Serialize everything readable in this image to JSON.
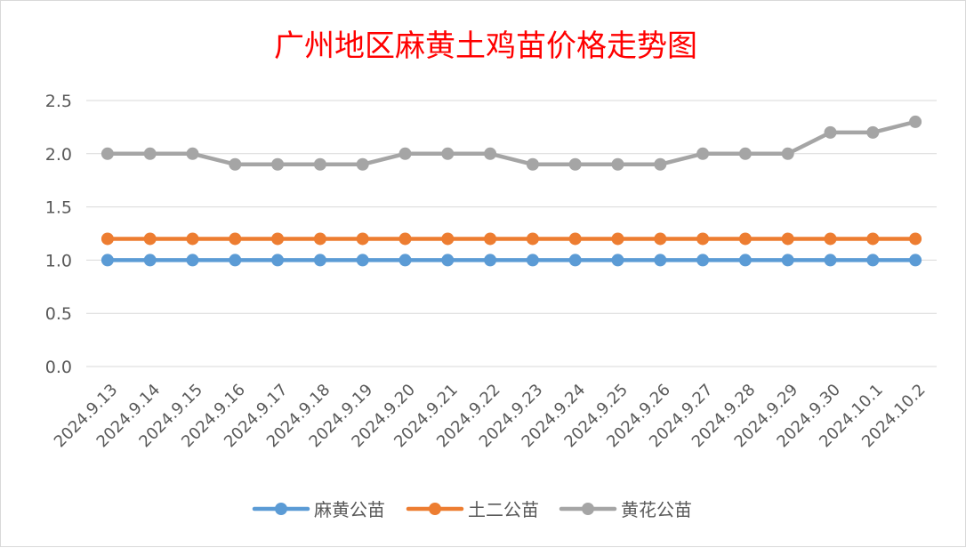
{
  "colors": {
    "series": [
      "#5b9bd5",
      "#ed7d31",
      "#a5a5a5"
    ],
    "title": "#ff0000",
    "grid": "#d9d9d9",
    "tick": "#595959"
  },
  "chart_data": {
    "type": "line",
    "title": "广州地区麻黄土鸡苗价格走势图",
    "xlabel": "",
    "ylabel": "",
    "categories": [
      "2024.9.13",
      "2024.9.14",
      "2024.9.15",
      "2024.9.16",
      "2024.9.17",
      "2024.9.18",
      "2024.9.19",
      "2024.9.20",
      "2024.9.21",
      "2024.9.22",
      "2024.9.23",
      "2024.9.24",
      "2024.9.25",
      "2024.9.26",
      "2024.9.27",
      "2024.9.28",
      "2024.9.29",
      "2024.9.30",
      "2024.10.1",
      "2024.10.2"
    ],
    "series": [
      {
        "name": "麻黄公苗",
        "values": [
          1.0,
          1.0,
          1.0,
          1.0,
          1.0,
          1.0,
          1.0,
          1.0,
          1.0,
          1.0,
          1.0,
          1.0,
          1.0,
          1.0,
          1.0,
          1.0,
          1.0,
          1.0,
          1.0,
          1.0
        ]
      },
      {
        "name": "土二公苗",
        "values": [
          1.2,
          1.2,
          1.2,
          1.2,
          1.2,
          1.2,
          1.2,
          1.2,
          1.2,
          1.2,
          1.2,
          1.2,
          1.2,
          1.2,
          1.2,
          1.2,
          1.2,
          1.2,
          1.2,
          1.2
        ]
      },
      {
        "name": "黄花公苗",
        "values": [
          2.0,
          2.0,
          2.0,
          1.9,
          1.9,
          1.9,
          1.9,
          2.0,
          2.0,
          2.0,
          1.9,
          1.9,
          1.9,
          1.9,
          2.0,
          2.0,
          2.0,
          2.2,
          2.2,
          2.3
        ]
      }
    ],
    "ylim": [
      0,
      2.5
    ],
    "yticks": [
      "0.0",
      "0.5",
      "1.0",
      "1.5",
      "2.0",
      "2.5"
    ],
    "grid": true,
    "legend": "bottom"
  }
}
